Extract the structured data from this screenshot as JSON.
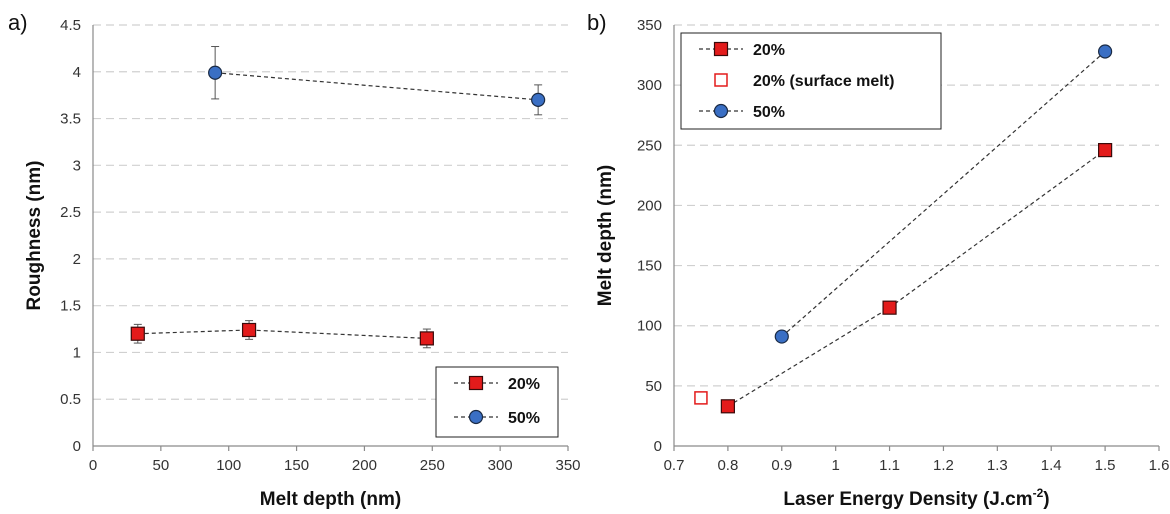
{
  "chart_data": [
    {
      "panel": "a)",
      "type": "scatter",
      "title": "",
      "xlabel": "Melt depth (nm)",
      "ylabel": "Roughness (nm)",
      "xlim": [
        0,
        350
      ],
      "ylim": [
        0,
        4.5
      ],
      "xticks": [
        0,
        50,
        100,
        150,
        200,
        250,
        300,
        350
      ],
      "yticks": [
        0,
        0.5,
        1,
        1.5,
        2,
        2.5,
        3,
        3.5,
        4,
        4.5
      ],
      "grid": "horizontal dashed",
      "legend_position": "bottom-right",
      "series": [
        {
          "name": "20%",
          "marker": "square",
          "color": "#e31b1b",
          "line": "dashed",
          "points": [
            {
              "x": 33,
              "y": 1.2,
              "err": 0.1
            },
            {
              "x": 115,
              "y": 1.24,
              "err": 0.1
            },
            {
              "x": 246,
              "y": 1.15,
              "err": 0.1
            }
          ]
        },
        {
          "name": "50%",
          "marker": "circle",
          "color": "#3a6fc4",
          "line": "dashed",
          "points": [
            {
              "x": 90,
              "y": 3.99,
              "err": 0.28
            },
            {
              "x": 328,
              "y": 3.7,
              "err": 0.16
            }
          ]
        }
      ]
    },
    {
      "panel": "b)",
      "type": "scatter",
      "title": "",
      "xlabel_main": "Laser Energy Density (J.cm",
      "xlabel_sup": "-2",
      "xlabel_end": ")",
      "ylabel": "Melt depth (nm)",
      "xlim": [
        0.7,
        1.6
      ],
      "ylim": [
        0,
        350
      ],
      "xticks": [
        "0.7",
        "0.8",
        "0.9",
        "1",
        "1.1",
        "1.2",
        "1.3",
        "1.4",
        "1.5",
        "1.6"
      ],
      "yticks": [
        0,
        50,
        100,
        150,
        200,
        250,
        300,
        350
      ],
      "grid": "horizontal dashed",
      "legend_position": "top-left",
      "series": [
        {
          "name": "20%",
          "marker": "square",
          "color": "#e31b1b",
          "line": "dashed",
          "points": [
            {
              "x": 0.8,
              "y": 33
            },
            {
              "x": 1.1,
              "y": 115
            },
            {
              "x": 1.5,
              "y": 246
            }
          ]
        },
        {
          "name": "20% (surface melt)",
          "marker": "open-square",
          "color": "#e31b1b",
          "line": "none",
          "points": [
            {
              "x": 0.75,
              "y": 40
            }
          ]
        },
        {
          "name": "50%",
          "marker": "circle",
          "color": "#3a6fc4",
          "line": "dashed",
          "points": [
            {
              "x": 0.9,
              "y": 91
            },
            {
              "x": 1.5,
              "y": 328
            }
          ]
        }
      ]
    }
  ]
}
